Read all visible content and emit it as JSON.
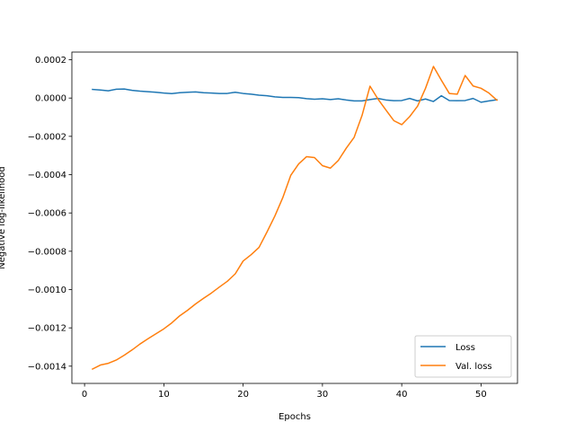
{
  "chart_data": {
    "type": "line",
    "xlabel": "Epochs",
    "ylabel": "Negative log-likelihood",
    "xlim": [
      -1.6,
      54.6
    ],
    "ylim": [
      -0.00149,
      0.00024
    ],
    "xticks": [
      0,
      10,
      20,
      30,
      40,
      50
    ],
    "xtick_labels": [
      "0",
      "10",
      "20",
      "30",
      "40",
      "50"
    ],
    "yticks": [
      -0.0014,
      -0.0012,
      -0.001,
      -0.0008,
      -0.0006,
      -0.0004,
      -0.0002,
      0.0,
      0.0002
    ],
    "ytick_labels": [
      "−0.0014",
      "−0.0012",
      "−0.0010",
      "−0.0008",
      "−0.0006",
      "−0.0004",
      "−0.0002",
      "0.0000",
      "0.0002"
    ],
    "grid": false,
    "legend_position": "lower-right",
    "x": [
      1,
      2,
      3,
      4,
      5,
      6,
      7,
      8,
      9,
      10,
      11,
      12,
      13,
      14,
      15,
      16,
      17,
      18,
      19,
      20,
      21,
      22,
      23,
      24,
      25,
      26,
      27,
      28,
      29,
      30,
      31,
      32,
      33,
      34,
      35,
      36,
      37,
      38,
      39,
      40,
      41,
      42,
      43,
      44,
      45,
      46,
      47,
      48,
      49,
      50,
      51,
      52
    ],
    "series": [
      {
        "name": "Loss",
        "color": "#1f77b4",
        "values": [
          4.5e-05,
          4.2e-05,
          3.8e-05,
          4.6e-05,
          4.7e-05,
          4e-05,
          3.6e-05,
          3.3e-05,
          3e-05,
          2.6e-05,
          2.3e-05,
          2.8e-05,
          3e-05,
          3.2e-05,
          2.8e-05,
          2.6e-05,
          2.4e-05,
          2.4e-05,
          3e-05,
          2.4e-05,
          2e-05,
          1.5e-05,
          1.2e-05,
          6e-06,
          3e-06,
          3e-06,
          2e-06,
          -3e-06,
          -6e-06,
          -4e-06,
          -8e-06,
          -4e-06,
          -1e-05,
          -1.5e-05,
          -1.5e-05,
          -8e-06,
          -2e-06,
          -1e-05,
          -1.4e-05,
          -1.3e-05,
          -2e-06,
          -1.5e-05,
          -5e-06,
          -1.8e-05,
          1.2e-05,
          -1.3e-05,
          -1.4e-05,
          -1.3e-05,
          -2e-06,
          -2.2e-05,
          -1.5e-05,
          -9e-06
        ]
      },
      {
        "name": "Val. loss",
        "color": "#ff7f0e",
        "values": [
          -0.001415,
          -0.001394,
          -0.001385,
          -0.001368,
          -0.001343,
          -0.001315,
          -0.001284,
          -0.001257,
          -0.001231,
          -0.001205,
          -0.001174,
          -0.001137,
          -0.001108,
          -0.001075,
          -0.001046,
          -0.001018,
          -0.000987,
          -0.000957,
          -0.000918,
          -0.000851,
          -0.000818,
          -0.00078,
          -0.0007,
          -0.000616,
          -0.00052,
          -0.000404,
          -0.000344,
          -0.000306,
          -0.000311,
          -0.000353,
          -0.000366,
          -0.000326,
          -0.000262,
          -0.000205,
          -9e-05,
          6.2e-05,
          -5e-06,
          -6.2e-05,
          -0.000118,
          -0.000139,
          -9.7e-05,
          -4.2e-05,
          5.1e-05,
          0.000165,
          9.3e-05,
          2.4e-05,
          2e-05,
          0.000118,
          6.3e-05,
          5.1e-05,
          2.6e-05,
          -1.1e-05
        ]
      }
    ]
  }
}
